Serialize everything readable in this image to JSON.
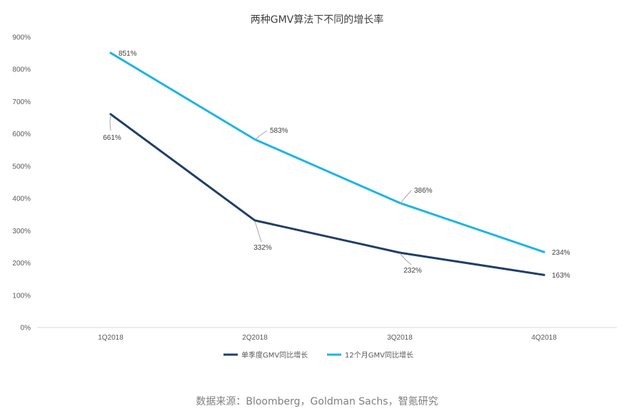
{
  "chart_data": {
    "type": "line",
    "title": "两种GMV算法下不同的增长率",
    "categories": [
      "1Q2018",
      "2Q2018",
      "3Q2018",
      "4Q2018"
    ],
    "series": [
      {
        "name": "单季度GMV同比增长",
        "values": [
          661,
          332,
          232,
          163
        ],
        "labels": [
          "661%",
          "332%",
          "232%",
          "163%"
        ],
        "color": "#1f3f66"
      },
      {
        "name": "12个月GMV同比增长",
        "values": [
          851,
          583,
          386,
          234
        ],
        "labels": [
          "851%",
          "583%",
          "386%",
          "234%"
        ],
        "color": "#1eb4e6"
      }
    ],
    "ylim": [
      0,
      900
    ],
    "yticks": [
      0,
      100,
      200,
      300,
      400,
      500,
      600,
      700,
      800,
      900
    ],
    "ytick_labels": [
      "0%",
      "100%",
      "200%",
      "300%",
      "400%",
      "500%",
      "600%",
      "700%",
      "800%",
      "900%"
    ],
    "grid": false,
    "legend_position": "bottom"
  },
  "source_note": "数据来源：Bloomberg，Goldman Sachs，智氪研究"
}
